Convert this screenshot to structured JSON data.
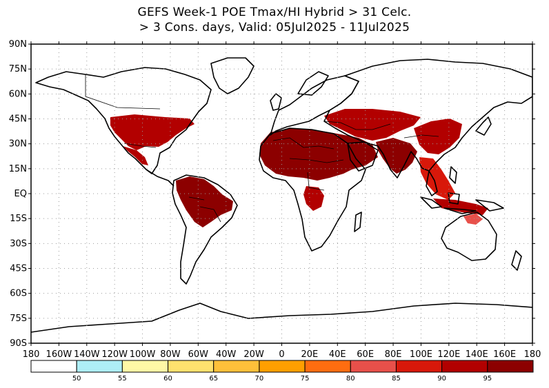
{
  "title_line1": "GEFS Week-1 POE Tmax/HI Hybrid > 31 Celc.",
  "title_line2": "> 3 Cons. days, Valid: 05Jul2025 - 11Jul2025",
  "lat_ticks": [
    "90N",
    "75N",
    "60N",
    "45N",
    "30N",
    "15N",
    "EQ",
    "15S",
    "30S",
    "45S",
    "60S",
    "75S",
    "90S"
  ],
  "lon_ticks": [
    "180",
    "160W",
    "140W",
    "120W",
    "100W",
    "80W",
    "60W",
    "40W",
    "20W",
    "0",
    "20E",
    "40E",
    "60E",
    "80E",
    "100E",
    "120E",
    "140E",
    "160E",
    "180"
  ],
  "colorbar": {
    "bins": [
      {
        "color": "#ffffff"
      },
      {
        "color": "#aeeef6"
      },
      {
        "color": "#fff8a6"
      },
      {
        "color": "#ffe16e"
      },
      {
        "color": "#ffc03a"
      },
      {
        "color": "#ff9f00"
      },
      {
        "color": "#ff6d10"
      },
      {
        "color": "#e8504a"
      },
      {
        "color": "#d8180a"
      },
      {
        "color": "#b20000"
      },
      {
        "color": "#8c0000"
      }
    ],
    "labels": [
      "50",
      "55",
      "60",
      "65",
      "70",
      "75",
      "80",
      "85",
      "90",
      "95"
    ]
  },
  "heat_regions": [
    {
      "name": "north-africa-arabia",
      "level": 95
    },
    {
      "name": "south-asia",
      "level": 95
    },
    {
      "name": "south-america",
      "level": 95
    },
    {
      "name": "central-asia",
      "level": 90
    },
    {
      "name": "east-asia",
      "level": 90
    },
    {
      "name": "north-america",
      "level": 90
    },
    {
      "name": "central-africa",
      "level": 90
    },
    {
      "name": "southeast-asia",
      "level": 85
    },
    {
      "name": "australia-north",
      "level": 80
    }
  ]
}
